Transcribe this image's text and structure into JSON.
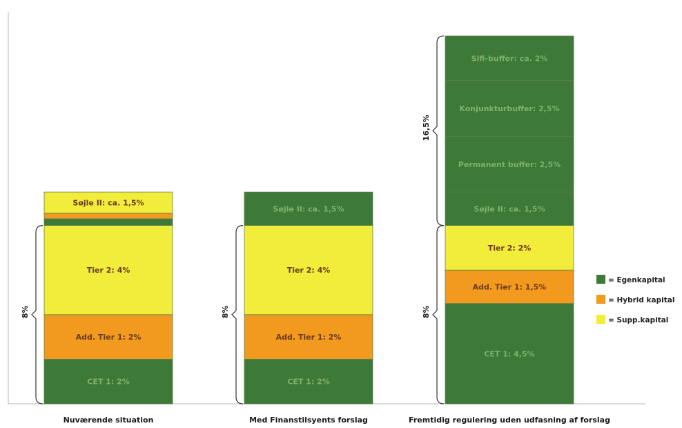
{
  "chart_data": {
    "type": "bar",
    "stacked": true,
    "categories": [
      "Nuværende situation",
      "Med Finanstilsyents forslag",
      "Fremtidig regulering uden udfasning af forslag"
    ],
    "bars": [
      {
        "category": "Nuværende situation",
        "segments": [
          {
            "label": "CET 1: 2%",
            "value": 2,
            "kind": "Egenkapital"
          },
          {
            "label": "Add. Tier 1: 2%",
            "value": 2,
            "kind": "Hybrid kapital"
          },
          {
            "label": "Tier 2: 4%",
            "value": 4,
            "kind": "Supp.kapital"
          },
          {
            "label": "",
            "value": 0.3,
            "kind": "Egenkapital"
          },
          {
            "label": "",
            "value": 0.25,
            "kind": "Hybrid kapital"
          },
          {
            "label": "Søjle II: ca. 1,5%",
            "value": 0.95,
            "kind": "Supp.kapital"
          }
        ],
        "braces": [
          {
            "label": "8%",
            "from": 0,
            "to": 8
          }
        ]
      },
      {
        "category": "Med Finanstilsyents forslag",
        "segments": [
          {
            "label": "CET 1: 2%",
            "value": 2,
            "kind": "Egenkapital"
          },
          {
            "label": "Add. Tier 1: 2%",
            "value": 2,
            "kind": "Hybrid kapital"
          },
          {
            "label": "Tier 2: 4%",
            "value": 4,
            "kind": "Supp.kapital"
          },
          {
            "label": "Søjle II: ca. 1,5%",
            "value": 1.5,
            "kind": "Egenkapital"
          }
        ],
        "braces": [
          {
            "label": "8%",
            "from": 0,
            "to": 8
          }
        ]
      },
      {
        "category": "Fremtidig regulering uden udfasning af forslag",
        "segments": [
          {
            "label": "CET 1: 4,5%",
            "value": 4.5,
            "kind": "Egenkapital"
          },
          {
            "label": "Add. Tier 1: 1,5%",
            "value": 1.5,
            "kind": "Hybrid kapital"
          },
          {
            "label": "Tier 2: 2%",
            "value": 2,
            "kind": "Supp.kapital"
          },
          {
            "label": "Søjle II: ca. 1,5%",
            "value": 1.5,
            "kind": "Egenkapital"
          },
          {
            "label": "Permanent buffer: 2,5%",
            "value": 2.5,
            "kind": "Egenkapital"
          },
          {
            "label": "Konjunkturbuffer: 2,5%",
            "value": 2.5,
            "kind": "Egenkapital"
          },
          {
            "label": "Sifi-buffer: ca. 2%",
            "value": 2,
            "kind": "Egenkapital"
          }
        ],
        "braces": [
          {
            "label": "8%",
            "from": 0,
            "to": 8
          },
          {
            "label": "16,5%",
            "from": 8,
            "to": 16.5
          }
        ]
      }
    ],
    "legend": [
      {
        "label": "= Egenkapital",
        "kind": "Egenkapital",
        "color": "#3d7a38"
      },
      {
        "label": "= Hybrid kapital",
        "kind": "Hybrid kapital",
        "color": "#f29a1e"
      },
      {
        "label": "= Supp.kapital",
        "kind": "Supp.kapital",
        "color": "#f2ec3a"
      }
    ],
    "colors": {
      "Egenkapital": "#3d7a38",
      "Hybrid kapital": "#f29a1e",
      "Supp.kapital": "#f2ec3a"
    },
    "ylim": [
      0,
      16.5
    ],
    "legend_position": "right",
    "grid": false
  }
}
